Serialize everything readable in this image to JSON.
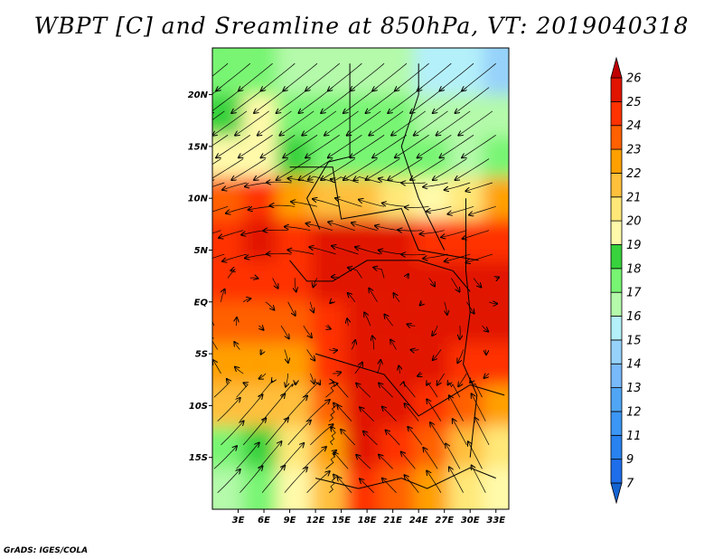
{
  "page": {
    "title": "WBPT [C] and Sreamline at 850hPa, VT: 2019040318",
    "footer": "GrADS: IGES/COLA"
  },
  "chart_data": {
    "type": "heatmap",
    "title": "WBPT [C] and Sreamline at 850hPa, VT: 2019040318",
    "variable": "Wet-bulb potential temperature [C] with 850hPa streamlines",
    "xlabel": "",
    "ylabel": "",
    "xlim": [
      0,
      34.5
    ],
    "ylim": [
      -20,
      24.5
    ],
    "x_ticks": [
      {
        "value": 3,
        "label": "3E"
      },
      {
        "value": 6,
        "label": "6E"
      },
      {
        "value": 9,
        "label": "9E"
      },
      {
        "value": 12,
        "label": "12E"
      },
      {
        "value": 15,
        "label": "15E"
      },
      {
        "value": 18,
        "label": "18E"
      },
      {
        "value": 21,
        "label": "21E"
      },
      {
        "value": 24,
        "label": "24E"
      },
      {
        "value": 27,
        "label": "27E"
      },
      {
        "value": 30,
        "label": "30E"
      },
      {
        "value": 33,
        "label": "33E"
      }
    ],
    "y_ticks": [
      {
        "value": 20,
        "label": "20N"
      },
      {
        "value": 15,
        "label": "15N"
      },
      {
        "value": 10,
        "label": "10N"
      },
      {
        "value": 5,
        "label": "5N"
      },
      {
        "value": 0,
        "label": "EQ"
      },
      {
        "value": -5,
        "label": "5S"
      },
      {
        "value": -10,
        "label": "10S"
      },
      {
        "value": -15,
        "label": "15S"
      }
    ],
    "colorbar": {
      "orientation": "vertical",
      "levels": [
        "7",
        "9",
        "11",
        "12",
        "13",
        "14",
        "15",
        "16",
        "17",
        "18",
        "19",
        "20",
        "21",
        "22",
        "23",
        "24",
        "25",
        "26"
      ],
      "colors": [
        "#1464d2",
        "#1e6eeb",
        "#2882f0",
        "#3c96f5",
        "#50a5f5",
        "#78b9fa",
        "#96d2fa",
        "#b4f0fa",
        "#b4faaa",
        "#78f573",
        "#37d23c",
        "#fffaaa",
        "#ffe878",
        "#ffc03c",
        "#ffa000",
        "#ff6000",
        "#ff3200",
        "#e11400",
        "#c00000"
      ]
    },
    "field": {
      "description": "Approximate WBPT values (C) read from the shaded map; rows from north to south, columns west to east",
      "lat_rows": [
        22,
        18,
        14,
        10,
        6,
        2,
        -2,
        -6,
        -10,
        -14,
        -18
      ],
      "lon_cols": [
        1.5,
        5.5,
        9.5,
        13.5,
        17.5,
        21.5,
        25.5,
        29.5,
        33.5
      ],
      "values": [
        [
          17,
          17,
          16,
          16,
          16,
          16,
          15,
          15,
          14
        ],
        [
          18,
          19,
          17,
          17,
          17,
          17,
          16,
          16,
          16
        ],
        [
          19,
          19,
          18,
          17,
          17,
          17,
          17,
          16,
          17
        ],
        [
          23,
          24,
          22,
          21,
          21,
          20,
          19,
          20,
          22
        ],
        [
          24,
          25,
          24,
          25,
          25,
          25,
          24,
          24,
          24
        ],
        [
          24,
          24,
          24,
          25,
          25,
          25,
          25,
          25,
          25
        ],
        [
          23,
          23,
          23,
          24,
          25,
          25,
          25,
          25,
          25
        ],
        [
          22,
          22,
          22,
          24,
          25,
          25,
          25,
          24,
          24
        ],
        [
          21,
          21,
          21,
          23,
          25,
          25,
          24,
          23,
          22
        ],
        [
          17,
          18,
          20,
          22,
          25,
          24,
          23,
          21,
          20
        ],
        [
          16,
          17,
          19,
          21,
          24,
          23,
          22,
          20,
          19
        ]
      ]
    }
  }
}
